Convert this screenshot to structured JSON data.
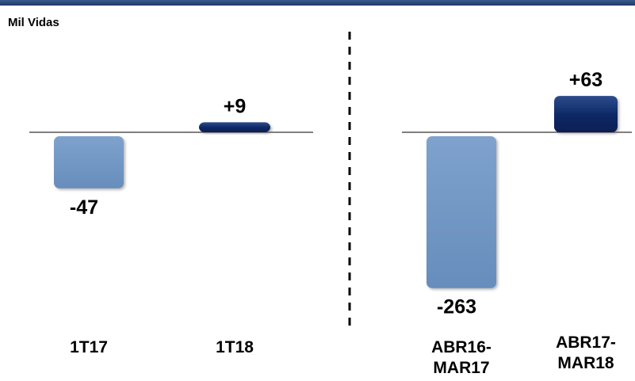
{
  "header": {
    "unit_label": "Mil Vidas"
  },
  "chart_data": [
    {
      "type": "bar",
      "categories": [
        "1T17",
        "1T18"
      ],
      "values": [
        -47,
        9
      ],
      "value_labels": [
        "-47",
        "+9"
      ],
      "colors": [
        "#6f96c4",
        "#0f2a66"
      ]
    },
    {
      "type": "bar",
      "categories": [
        [
          "ABR16-",
          "MAR17"
        ],
        [
          "ABR17-",
          "MAR18"
        ]
      ],
      "values": [
        -263,
        63
      ],
      "value_labels": [
        "-263",
        "+63"
      ],
      "colors": [
        "#6f96c4",
        "#0f2a66"
      ]
    }
  ]
}
